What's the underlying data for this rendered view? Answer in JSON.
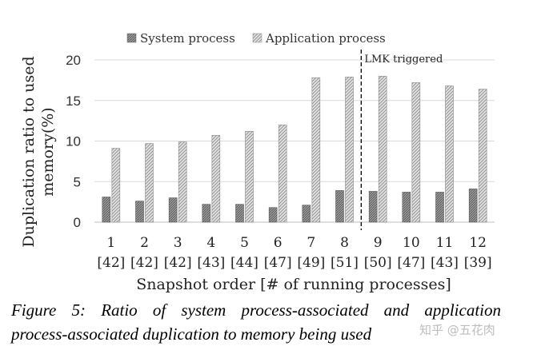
{
  "chart_data": {
    "type": "bar",
    "categories": [
      "1",
      "2",
      "3",
      "4",
      "5",
      "6",
      "7",
      "8",
      "9",
      "10",
      "11",
      "12"
    ],
    "category_sublabels": [
      "[42]",
      "[42]",
      "[42]",
      "[43]",
      "[44]",
      "[47]",
      "[49]",
      "[51]",
      "[50]",
      "[47]",
      "[43]",
      "[39]"
    ],
    "series": [
      {
        "name": "System process",
        "values": [
          3.1,
          2.6,
          3.0,
          2.2,
          2.2,
          1.8,
          2.1,
          3.9,
          3.8,
          3.7,
          3.7,
          4.1
        ],
        "color": "#7a7a7a"
      },
      {
        "name": "Application process",
        "values": [
          9.1,
          9.7,
          9.9,
          10.7,
          11.2,
          12.0,
          17.8,
          17.9,
          18.0,
          17.2,
          16.8,
          16.4
        ],
        "color": "#bdbdbd"
      }
    ],
    "xlabel": "Snapshot order [# of running processes]",
    "ylabel_lines": [
      "Duplication ratio to used",
      "memory(%)"
    ],
    "ylim": [
      0,
      20
    ],
    "yticks": [
      "0",
      "5",
      "10",
      "15",
      "20"
    ],
    "grid": true,
    "legend_position": "top",
    "annotation": {
      "text": "LMK triggered",
      "between_categories": [
        "8",
        "9"
      ]
    }
  },
  "caption": {
    "line1": "Figure 5: Ratio of system process-associated and application",
    "line2": "process-associated duplication to memory being used"
  },
  "watermark": "知乎 @五花肉"
}
